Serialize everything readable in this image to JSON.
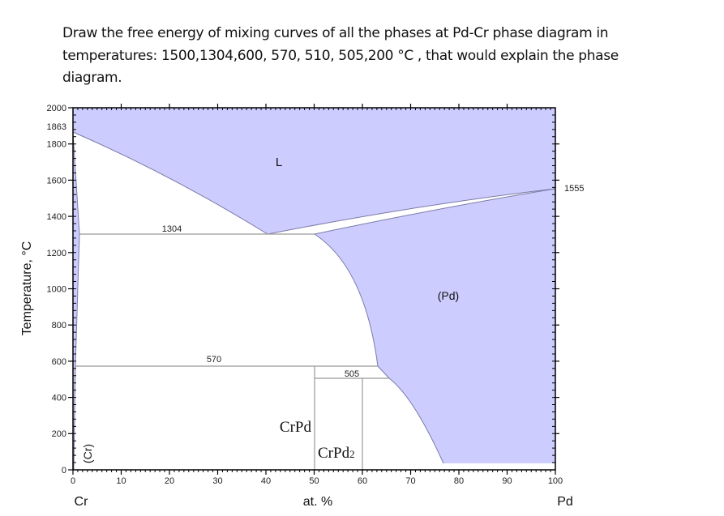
{
  "question": {
    "text": "Draw the free energy of mixing curves of all the phases at Pd-Cr phase diagram in temperatures: 1500,1304,600, 570, 510, 505,200 °C , that would explain the phase diagram."
  },
  "chart_data": {
    "type": "phase-diagram",
    "title": "Pd-Cr phase diagram",
    "xlabel": "at. %",
    "ylabel": "Temperature, °C",
    "xlim": [
      0,
      100
    ],
    "ylim": [
      0,
      2000
    ],
    "x_ticks": [
      "0",
      "10",
      "20",
      "30",
      "40",
      "50",
      "60",
      "70",
      "80",
      "90",
      "100"
    ],
    "y_ticks": [
      "0",
      "200",
      "400",
      "600",
      "800",
      "1000",
      "1200",
      "1400",
      "1600",
      "1800",
      "1863",
      "2000"
    ],
    "x_end_labels": {
      "left": "Cr",
      "right": "Pd"
    },
    "fill_color": "#ccccff",
    "line_color": "#7a7aa8",
    "special_temperatures": {
      "Cr_melting": 1863,
      "Pd_melting": 1555,
      "eutectic": 1304,
      "eutectoid": 570,
      "peritectoid": 505
    },
    "phase_labels": [
      {
        "name": "L",
        "x": 43,
        "T": 1720
      },
      {
        "name": "(Pd)",
        "x": 77,
        "T": 980
      },
      {
        "name": "(Cr)",
        "x": 2,
        "T": 120
      },
      {
        "name": "CrPd",
        "x": 44,
        "T": 230
      },
      {
        "name": "CrPd2",
        "x": 56,
        "T": 90
      }
    ],
    "invariant_lines": [
      {
        "T": 1304,
        "label": "1304",
        "x_from": 1.3,
        "x_to": 50
      },
      {
        "T": 570,
        "label": "570",
        "x_from": 0.5,
        "x_to": 63
      },
      {
        "T": 505,
        "label": "505",
        "x_from": 50,
        "x_to": 65.5
      }
    ],
    "liquidus_left": [
      [
        0,
        1863
      ],
      [
        20,
        1620
      ],
      [
        40,
        1304
      ]
    ],
    "liquidus_right": [
      [
        40,
        1304
      ],
      [
        70,
        1460
      ],
      [
        100,
        1555
      ]
    ],
    "solidus_right": [
      [
        50,
        1304
      ],
      [
        75,
        1450
      ],
      [
        100,
        1555
      ]
    ],
    "pd_solvus": [
      [
        50,
        1304
      ],
      [
        56,
        1150
      ],
      [
        60,
        900
      ],
      [
        63,
        570
      ],
      [
        65.5,
        505
      ],
      [
        70,
        400
      ],
      [
        74,
        200
      ],
      [
        77,
        0
      ]
    ],
    "cr_solvus": [
      [
        0,
        1863
      ],
      [
        1.3,
        1304
      ],
      [
        0.5,
        570
      ],
      [
        0,
        0
      ]
    ],
    "compound_lines": [
      {
        "name": "CrPd",
        "x": 50,
        "T_top": 570
      },
      {
        "name": "CrPd2",
        "x": 60,
        "T_top": 505
      }
    ]
  },
  "labels": {
    "L": "L",
    "pd": "(Pd)",
    "cr": "(Cr)",
    "crpd": "CrPd",
    "crpd2_base": "CrPd",
    "crpd2_sub": "2",
    "t1304": "1304",
    "t570": "570",
    "t505": "505",
    "t1555": "1555",
    "y1863": "1863",
    "ylabel": "Temperature, °C",
    "xlabel": "at. %",
    "left_el": "Cr",
    "right_el": "Pd"
  },
  "axis": {
    "x": [
      "0",
      "10",
      "20",
      "30",
      "40",
      "50",
      "60",
      "70",
      "80",
      "90",
      "100"
    ],
    "y": [
      "0",
      "200",
      "400",
      "600",
      "800",
      "1000",
      "1200",
      "1400",
      "1600",
      "1800",
      "2000"
    ]
  }
}
